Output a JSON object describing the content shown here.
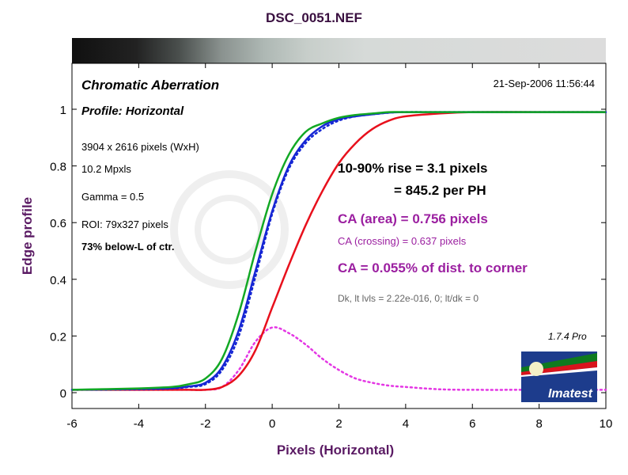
{
  "figure_title": "DSC_0051.NEF",
  "panel": {
    "heading": "Chromatic Aberration",
    "subheading": "Profile: Horizontal",
    "timestamp": "21-Sep-2006 11:56:44",
    "info_lines": [
      "3904 x 2616 pixels (WxH)",
      "10.2 Mpxls",
      "Gamma = 0.5",
      "ROI: 79x327 pixels"
    ],
    "info_bold": "73% below-L of ctr.",
    "rise_line": "10-90% rise = 3.1 pixels",
    "per_ph_line": "= 845.2 per PH",
    "ca_area": "CA (area) = 0.756 pixels",
    "ca_crossing": "CA (crossing) = 0.637 pixels",
    "ca_percent": "CA = 0.055% of dist. to corner",
    "dk_line": "Dk, lt lvls = 2.22e-016, 0;  lt/dk = 0",
    "version": "1.7.4  Pro",
    "logo_text": "Imatest"
  },
  "colors": {
    "title": "#3a1040",
    "axis_label": "#5a1a63",
    "ca_text": "#9b1fa0",
    "red": "#e8101c",
    "green": "#12a824",
    "blue": "#1526d4",
    "magenta": "#e436e4",
    "logo_bg": "#1d3c8c",
    "logo_red": "#d8141c",
    "logo_green": "#0e7a1e"
  },
  "chart_data": {
    "type": "line",
    "xlabel": "Pixels (Horizontal)",
    "ylabel": "Edge profile",
    "xlim": [
      -6,
      10
    ],
    "ylim": [
      0,
      1
    ],
    "xticks": [
      -6,
      -4,
      -2,
      0,
      2,
      4,
      6,
      8,
      10
    ],
    "yticks": [
      0,
      0.2,
      0.4,
      0.6,
      0.8,
      1
    ],
    "xtick_labels": [
      "-6",
      "-4",
      "-2",
      "0",
      "2",
      "4",
      "6",
      "8",
      "10"
    ],
    "ytick_labels": [
      "0",
      "0.2",
      "0.4",
      "0.6",
      "0.8",
      "1"
    ],
    "grid": false,
    "x": [
      -6,
      -4,
      -3,
      -2.5,
      -2,
      -1.5,
      -1,
      -0.5,
      0,
      0.5,
      1,
      1.5,
      2,
      2.5,
      3,
      3.5,
      4,
      5,
      6,
      8,
      10
    ],
    "series": [
      {
        "color": "red",
        "style": "solid",
        "values": [
          0.01,
          0.01,
          0.01,
          0.01,
          0.01,
          0.02,
          0.06,
          0.15,
          0.3,
          0.45,
          0.59,
          0.71,
          0.81,
          0.88,
          0.93,
          0.96,
          0.975,
          0.985,
          0.99,
          0.99,
          0.99
        ]
      },
      {
        "color": "green",
        "style": "solid",
        "values": [
          0.01,
          0.015,
          0.02,
          0.03,
          0.05,
          0.12,
          0.28,
          0.5,
          0.7,
          0.84,
          0.92,
          0.95,
          0.97,
          0.98,
          0.985,
          0.99,
          0.99,
          0.99,
          0.99,
          0.99,
          0.99
        ]
      },
      {
        "color": "blue",
        "style": "solid",
        "values": [
          0.01,
          0.013,
          0.016,
          0.022,
          0.035,
          0.09,
          0.22,
          0.43,
          0.64,
          0.8,
          0.89,
          0.94,
          0.965,
          0.975,
          0.982,
          0.988,
          0.99,
          0.99,
          0.99,
          0.99,
          0.99
        ]
      },
      {
        "color": "blue",
        "style": "dotted",
        "values": [
          0.01,
          0.012,
          0.015,
          0.02,
          0.03,
          0.08,
          0.2,
          0.41,
          0.63,
          0.79,
          0.88,
          0.93,
          0.96,
          0.975,
          0.982,
          0.988,
          0.99,
          0.99,
          0.99,
          0.99,
          0.99
        ]
      },
      {
        "color": "magenta",
        "style": "dotted",
        "values": [
          0.01,
          0.01,
          0.01,
          0.01,
          0.01,
          0.02,
          0.08,
          0.18,
          0.23,
          0.21,
          0.17,
          0.12,
          0.08,
          0.05,
          0.035,
          0.025,
          0.02,
          0.012,
          0.01,
          0.01,
          0.01
        ]
      }
    ]
  }
}
